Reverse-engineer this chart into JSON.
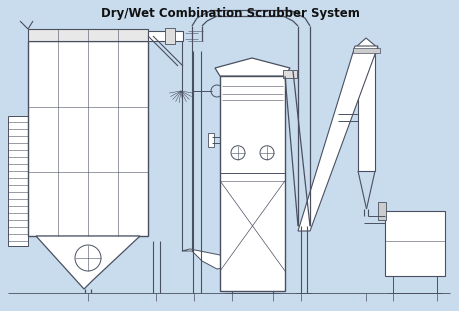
{
  "title": "Dry/Wet Combination Scrubber System",
  "bg_color": "#c8dced",
  "line_color": "#4a5060",
  "fig_width": 4.6,
  "fig_height": 3.11,
  "dpi": 100
}
